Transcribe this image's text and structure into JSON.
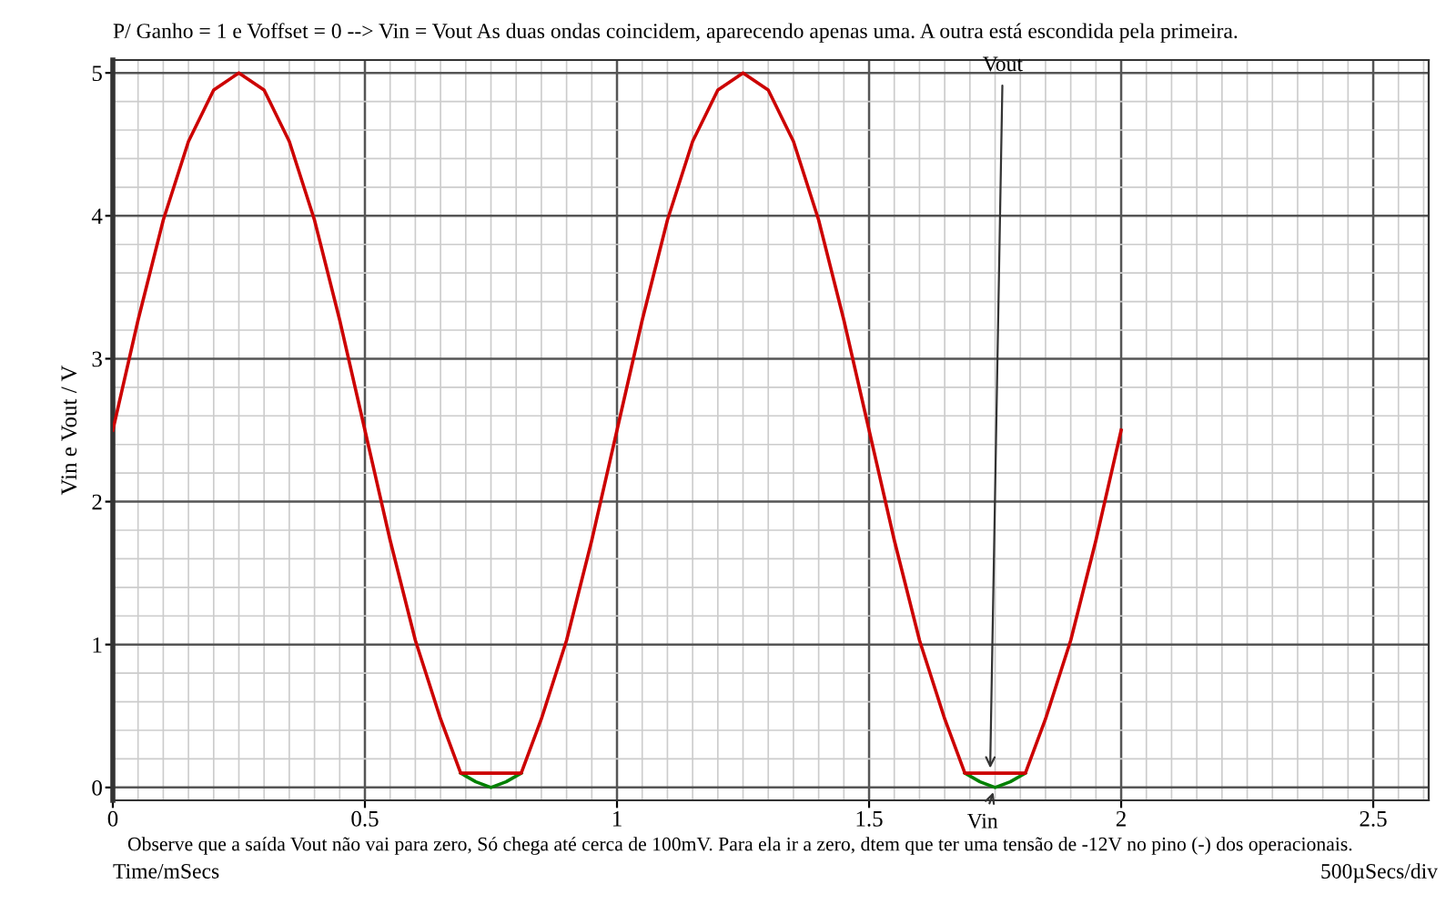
{
  "chart_data": {
    "type": "line",
    "title": "P/ Ganho = 1 e Voffset = 0 --> Vin = Vout As duas ondas coincidem, aparecendo apenas uma. A outra está escondida pela primeira.",
    "xlabel": "Time/mSecs",
    "ylabel": "Vin e Vout / V",
    "series": [
      {
        "color": "#008000",
        "x": [
          0.69,
          0.72,
          0.75,
          0.78,
          0.81,
          1.25,
          1.69,
          1.72,
          1.75,
          1.78,
          1.81
        ],
        "values": [
          0.1,
          0.04,
          0,
          0.04,
          0.1,
          null,
          0.1,
          0.04,
          0,
          0.04,
          0.1
        ]
      },
      {
        "color": "#cc0000",
        "x": [
          0,
          0.05,
          0.1,
          0.15,
          0.2,
          0.25,
          0.3,
          0.35,
          0.4,
          0.45,
          0.5,
          0.55,
          0.6,
          0.65,
          0.69,
          0.81,
          0.85,
          0.9,
          0.95,
          1.0,
          1.05,
          1.1,
          1.15,
          1.2,
          1.25,
          1.3,
          1.35,
          1.4,
          1.45,
          1.5,
          1.55,
          1.6,
          1.65,
          1.69,
          1.81,
          1.85,
          1.9,
          1.95,
          2.0
        ],
        "values": [
          2.5,
          3.27,
          3.97,
          4.52,
          4.88,
          5,
          4.88,
          4.52,
          3.97,
          3.27,
          2.5,
          1.73,
          1.03,
          0.48,
          0.1,
          0.1,
          0.48,
          1.03,
          1.73,
          2.5,
          3.27,
          3.97,
          4.52,
          4.88,
          5,
          4.88,
          4.52,
          3.97,
          3.27,
          2.5,
          1.73,
          1.03,
          0.48,
          0.1,
          0.1,
          0.48,
          1.03,
          1.73,
          2.5
        ]
      }
    ],
    "xlim": [
      0,
      2.61
    ],
    "ylim": [
      -0.09,
      5.09
    ],
    "xticks": [
      0,
      0.5,
      1,
      1.5,
      2,
      2.5
    ],
    "yticks": [
      0,
      1,
      2,
      3,
      4,
      5
    ],
    "grid": true,
    "legend": false,
    "marker": "none",
    "line_style": "solid",
    "annotations": [
      {
        "text": "Vout",
        "x": 1.74,
        "y": 0.1
      },
      {
        "text": "Vin",
        "x": 1.75,
        "y": 0
      },
      "Observe que a saída Vout não vai para zero, Só chega até cerca de 100mV. Para ela ir a zero, dtem que ter uma tensão de -12V no pino (-) dos operacionais.",
      "500µSecs/div"
    ]
  }
}
